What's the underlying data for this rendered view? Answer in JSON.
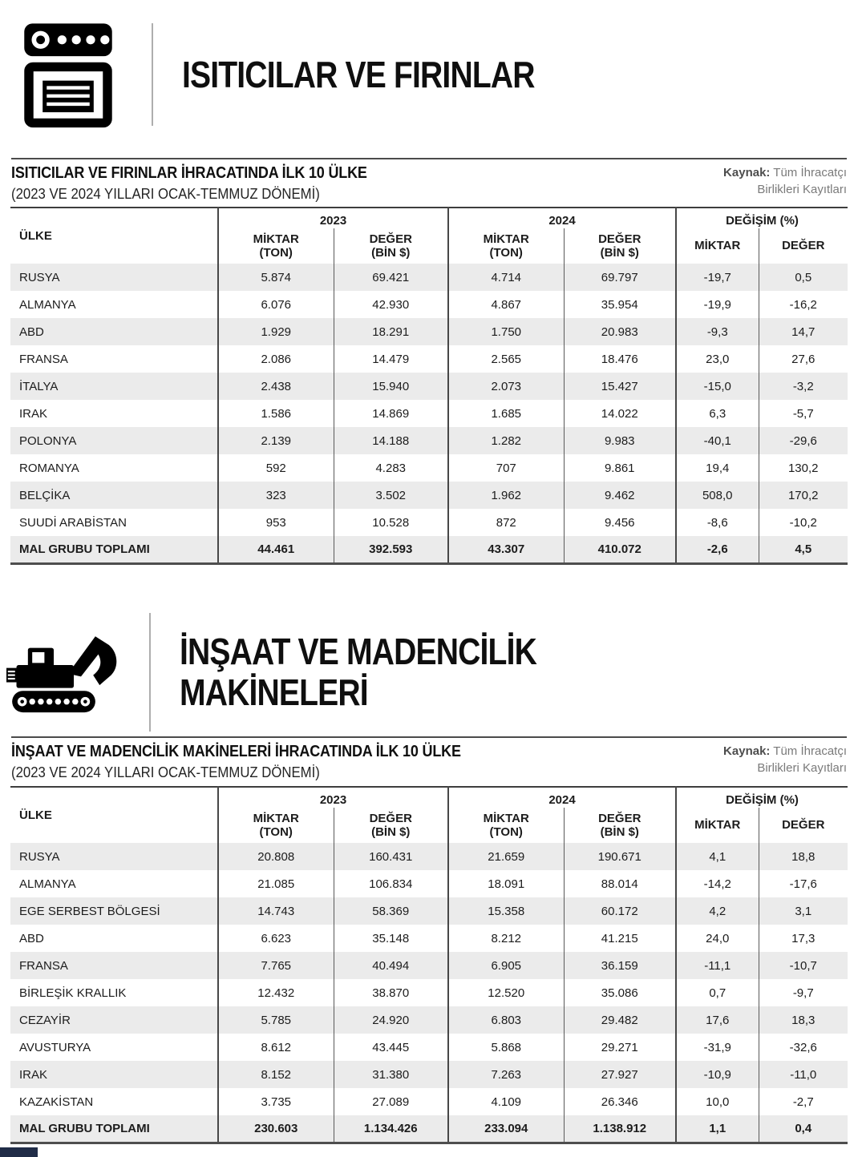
{
  "colors": {
    "stripe": "#ebebeb",
    "border_dark": "#474747",
    "source_gray": "#7a7a7a",
    "footer_bar_navy": "#202c47"
  },
  "headers": {
    "country": "ÜLKE",
    "year_2023": "2023",
    "year_2024": "2024",
    "change": "DEĞİŞİM (%)",
    "qty_l1": "MİKTAR",
    "qty_l2": "(TON)",
    "val_l1": "DEĞER",
    "val_l2": "(BİN $)",
    "qty": "MİKTAR",
    "val": "DEĞER"
  },
  "sections": [
    {
      "icon": "oven-icon",
      "hero_title": "ISITICILAR VE FIRINLAR",
      "table_title": "ISITICILAR VE FIRINLAR İHRACATINDA İLK 10 ÜLKE",
      "table_subtitle": "(2023 VE 2024 YILLARI OCAK-TEMMUZ DÖNEMİ)",
      "source_label": "Kaynak:",
      "source_rest": " Tüm İhracatçı",
      "source_line2": "Birlikleri Kayıtları",
      "table": {
        "rows": [
          [
            "RUSYA",
            "5.874",
            "69.421",
            "4.714",
            "69.797",
            "-19,7",
            "0,5"
          ],
          [
            "ALMANYA",
            "6.076",
            "42.930",
            "4.867",
            "35.954",
            "-19,9",
            "-16,2"
          ],
          [
            "ABD",
            "1.929",
            "18.291",
            "1.750",
            "20.983",
            "-9,3",
            "14,7"
          ],
          [
            "FRANSA",
            "2.086",
            "14.479",
            "2.565",
            "18.476",
            "23,0",
            "27,6"
          ],
          [
            "İTALYA",
            "2.438",
            "15.940",
            "2.073",
            "15.427",
            "-15,0",
            "-3,2"
          ],
          [
            "IRAK",
            "1.586",
            "14.869",
            "1.685",
            "14.022",
            "6,3",
            "-5,7"
          ],
          [
            "POLONYA",
            "2.139",
            "14.188",
            "1.282",
            "9.983",
            "-40,1",
            "-29,6"
          ],
          [
            "ROMANYA",
            "592",
            "4.283",
            "707",
            "9.861",
            "19,4",
            "130,2"
          ],
          [
            "BELÇİKA",
            "323",
            "3.502",
            "1.962",
            "9.462",
            "508,0",
            "170,2"
          ],
          [
            "SUUDİ ARABİSTAN",
            "953",
            "10.528",
            "872",
            "9.456",
            "-8,6",
            "-10,2"
          ]
        ],
        "total": [
          "MAL GRUBU TOPLAMI",
          "44.461",
          "392.593",
          "43.307",
          "410.072",
          "-2,6",
          "4,5"
        ]
      }
    },
    {
      "icon": "excavator-icon",
      "hero_title": "İNŞAAT VE MADENCİLİK\nMAKİNELERİ",
      "table_title": "İNŞAAT VE MADENCİLİK MAKİNELERİ İHRACATINDA İLK 10 ÜLKE",
      "table_subtitle": "(2023 VE 2024 YILLARI OCAK-TEMMUZ DÖNEMİ)",
      "source_label": "Kaynak:",
      "source_rest": " Tüm İhracatçı",
      "source_line2": "Birlikleri Kayıtları",
      "table": {
        "rows": [
          [
            "RUSYA",
            "20.808",
            "160.431",
            "21.659",
            "190.671",
            "4,1",
            "18,8"
          ],
          [
            "ALMANYA",
            "21.085",
            "106.834",
            "18.091",
            "88.014",
            "-14,2",
            "-17,6"
          ],
          [
            "EGE SERBEST BÖLGESİ",
            "14.743",
            "58.369",
            "15.358",
            "60.172",
            "4,2",
            "3,1"
          ],
          [
            "ABD",
            "6.623",
            "35.148",
            "8.212",
            "41.215",
            "24,0",
            "17,3"
          ],
          [
            "FRANSA",
            "7.765",
            "40.494",
            "6.905",
            "36.159",
            "-11,1",
            "-10,7"
          ],
          [
            "BİRLEŞİK KRALLIK",
            "12.432",
            "38.870",
            "12.520",
            "35.086",
            "0,7",
            "-9,7"
          ],
          [
            "CEZAYİR",
            "5.785",
            "24.920",
            "6.803",
            "29.482",
            "17,6",
            "18,3"
          ],
          [
            "AVUSTURYA",
            "8.612",
            "43.445",
            "5.868",
            "29.271",
            "-31,9",
            "-32,6"
          ],
          [
            "IRAK",
            "8.152",
            "31.380",
            "7.263",
            "27.927",
            "-10,9",
            "-11,0"
          ],
          [
            "KAZAKİSTAN",
            "3.735",
            "27.089",
            "4.109",
            "26.346",
            "10,0",
            "-2,7"
          ]
        ],
        "total": [
          "MAL GRUBU TOPLAMI",
          "230.603",
          "1.134.426",
          "233.094",
          "1.138.912",
          "1,1",
          "0,4"
        ]
      }
    }
  ]
}
